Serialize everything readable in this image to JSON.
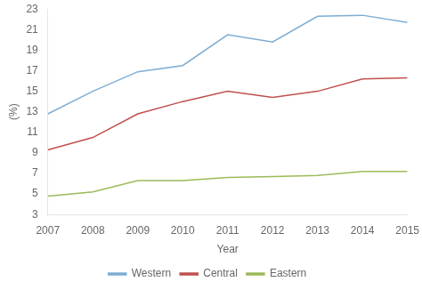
{
  "chart_data": {
    "type": "line",
    "x": [
      2007,
      2008,
      2009,
      2010,
      2011,
      2012,
      2013,
      2014,
      2015
    ],
    "series": [
      {
        "name": "Western",
        "color": "#7dadd4",
        "values": [
          12.8,
          15.0,
          16.9,
          17.5,
          20.5,
          19.8,
          22.3,
          22.4,
          21.7
        ]
      },
      {
        "name": "Central",
        "color": "#c0504d",
        "values": [
          9.3,
          10.5,
          12.8,
          14.0,
          15.0,
          14.4,
          15.0,
          16.2,
          16.3
        ]
      },
      {
        "name": "Eastern",
        "color": "#9bbb59",
        "values": [
          4.8,
          5.2,
          6.3,
          6.3,
          6.6,
          6.7,
          6.8,
          7.2,
          7.2
        ]
      }
    ],
    "xlabel": "Year",
    "ylabel": "(%)",
    "xlim": [
      2007,
      2015
    ],
    "xticks": [
      2007,
      2008,
      2009,
      2010,
      2011,
      2012,
      2013,
      2014,
      2015
    ],
    "ylim": [
      3,
      23
    ],
    "yticks": [
      3,
      5,
      7,
      9,
      11,
      13,
      15,
      17,
      19,
      21,
      23
    ],
    "grid": false,
    "legend": "bottom"
  }
}
